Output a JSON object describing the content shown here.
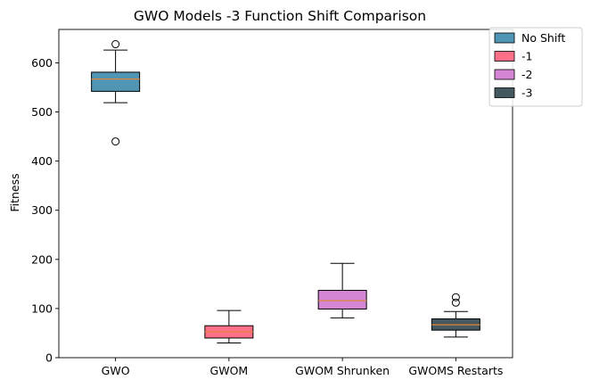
{
  "chart_data": {
    "type": "box",
    "title": "GWO Models -3 Function Shift Comparison",
    "xlabel": "",
    "ylabel": "Fitness",
    "ylim": [
      0,
      668
    ],
    "yticks": [
      0,
      100,
      200,
      300,
      400,
      500,
      600
    ],
    "grid": false,
    "legend_position": "top-right, outside plot",
    "categories": [
      "GWO",
      "GWOM",
      "GWOM Shrunken",
      "GWOMS Restarts"
    ],
    "series": [
      {
        "name": "No Shift",
        "color": "#5096b4",
        "whisker_low": 519,
        "q1": 542,
        "median": 567,
        "q3": 581,
        "whisker_high": 626,
        "outliers": [
          440,
          638
        ]
      },
      {
        "name": "-1",
        "color": "#ff7088",
        "whisker_low": 30,
        "q1": 40,
        "median": 53,
        "q3": 65,
        "whisker_high": 96,
        "outliers": []
      },
      {
        "name": "-2",
        "color": "#d485d3",
        "whisker_low": 81,
        "q1": 99,
        "median": 116,
        "q3": 137,
        "whisker_high": 192,
        "outliers": []
      },
      {
        "name": "-3",
        "color": "#45575f",
        "whisker_low": 42,
        "q1": 56,
        "median": 67,
        "q3": 79,
        "whisker_high": 94,
        "outliers": [
          112,
          123
        ]
      }
    ],
    "median_color": "#e0853a"
  }
}
